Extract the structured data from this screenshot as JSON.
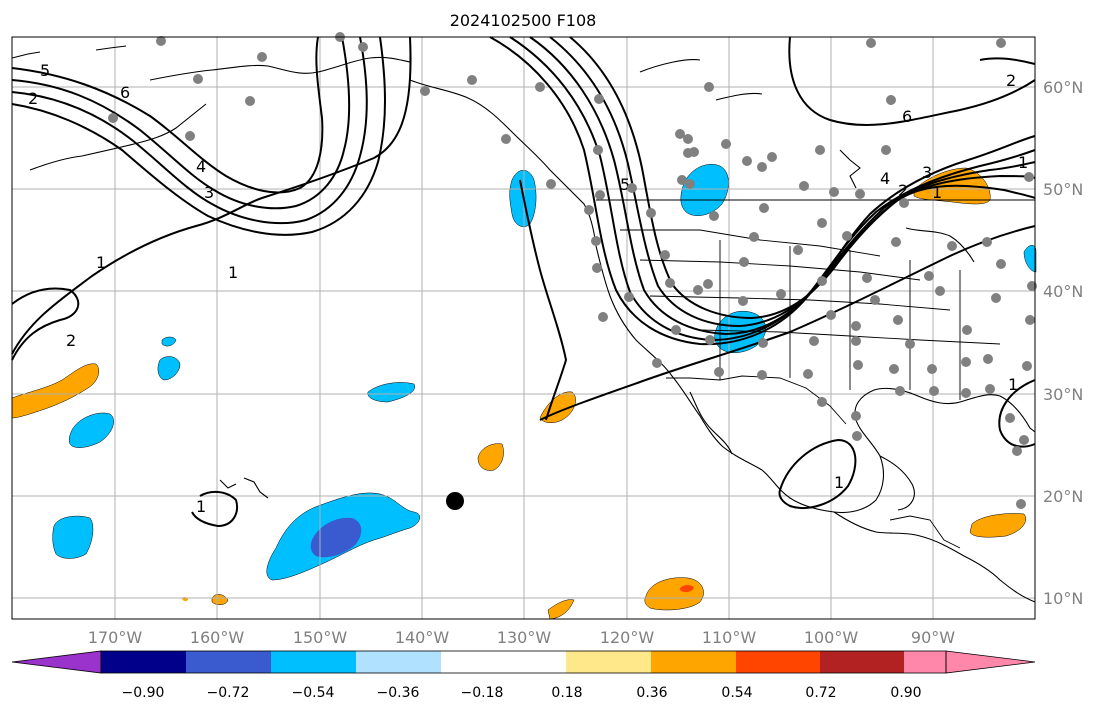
{
  "title": "2024102500 F108",
  "map": {
    "lon_labels": [
      "170°W",
      "160°W",
      "150°W",
      "140°W",
      "130°W",
      "120°W",
      "110°W",
      "100°W",
      "90°W"
    ],
    "lat_labels": [
      "60°N",
      "50°N",
      "40°N",
      "30°N",
      "20°N",
      "10°N"
    ],
    "lon_range": [
      -180,
      -80
    ],
    "lat_range": [
      8,
      65
    ],
    "grid": true
  },
  "colorbar": {
    "tick_labels": [
      "−0.90",
      "−0.72",
      "−0.54",
      "−0.36",
      "−0.18",
      "0.18",
      "0.36",
      "0.54",
      "0.72",
      "0.90"
    ],
    "colors": [
      "#9933cc",
      "#00008b",
      "#3a5bd0",
      "#00bfff",
      "#b0e2ff",
      "#ffffff",
      "#ffe88a",
      "#ffa500",
      "#ff4500",
      "#b22222",
      "#ff88aa"
    ]
  },
  "contour_labels": [
    "5",
    "2",
    "6",
    "4",
    "3",
    "1",
    "1",
    "2",
    "1",
    "5",
    "6",
    "2",
    "4",
    "2",
    "3",
    "1",
    "1",
    "1",
    "1"
  ],
  "marker": {
    "label": "storm-center",
    "lon": -136.5,
    "lat": 19.3
  }
}
